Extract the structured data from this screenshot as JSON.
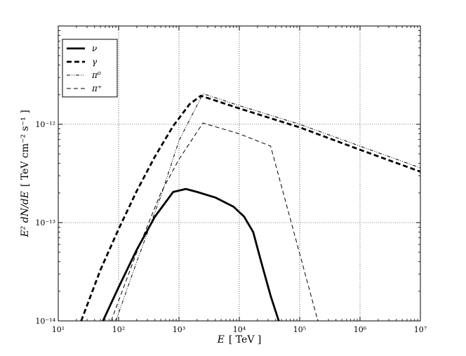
{
  "chart_data": {
    "type": "line",
    "title": "",
    "xlabel": {
      "symbol": "E",
      "unit": "[ TeV ]"
    },
    "ylabel": {
      "symbol": "E² dN/dE",
      "unit": "[ TeV cm⁻² s⁻¹ ]"
    },
    "xscale": "log",
    "yscale": "log",
    "xlim": [
      10,
      10000000
    ],
    "ylim": [
      1e-14,
      1e-11
    ],
    "grid": true,
    "legend_position": "top-left",
    "x_ticks": [
      {
        "value": 10,
        "label": "10¹"
      },
      {
        "value": 100,
        "label": "10²"
      },
      {
        "value": 1000,
        "label": "10³"
      },
      {
        "value": 10000,
        "label": "10⁴"
      },
      {
        "value": 100000,
        "label": "10⁵"
      },
      {
        "value": 1000000,
        "label": "10⁶"
      },
      {
        "value": 10000000,
        "label": "10⁷"
      }
    ],
    "y_ticks": [
      {
        "value": 1e-14,
        "label": "10⁻¹⁴"
      },
      {
        "value": 1e-13,
        "label": "10⁻¹³"
      },
      {
        "value": 1e-12,
        "label": "10⁻¹²"
      }
    ],
    "series": [
      {
        "name": "ν",
        "style": "solid-thick",
        "x": [
          55,
          100,
          200,
          400,
          800,
          1300,
          2000,
          4000,
          8000,
          12000,
          17000,
          23000,
          33000,
          45000
        ],
        "y": [
          1e-14,
          2.2e-14,
          5.3e-14,
          1.15e-13,
          2.05e-13,
          2.2e-13,
          2.05e-13,
          1.8e-13,
          1.45e-13,
          1.15e-13,
          8e-14,
          4e-14,
          1.8e-14,
          1e-14
        ]
      },
      {
        "name": "γ",
        "style": "dashed-thick",
        "x": [
          24,
          50,
          100,
          200,
          400,
          800,
          1500,
          2300,
          10000,
          100000,
          1000000,
          10000000
        ],
        "y": [
          1e-14,
          3.3e-14,
          8.6e-14,
          2.1e-13,
          4.7e-13,
          9.6e-13,
          1.6e-12,
          1.95e-12,
          1.45e-12,
          9.3e-13,
          5.5e-13,
          3.3e-13
        ]
      },
      {
        "name": "π⁰",
        "style": "dashdot-thin",
        "x": [
          90,
          200,
          500,
          1000,
          2500,
          10000,
          100000,
          1000000,
          10000000
        ],
        "y": [
          1e-14,
          4e-14,
          1.85e-13,
          6.8e-13,
          2.05e-12,
          1.55e-12,
          1e-12,
          6e-13,
          3.6e-13
        ]
      },
      {
        "name": "π⁺",
        "style": "dashed-thin",
        "x": [
          75,
          200,
          500,
          1000,
          2500,
          10000,
          33000,
          200000
        ],
        "y": [
          1e-14,
          5e-14,
          2e-13,
          4.4e-13,
          1.03e-12,
          8e-13,
          6e-13,
          1e-14
        ]
      }
    ]
  }
}
